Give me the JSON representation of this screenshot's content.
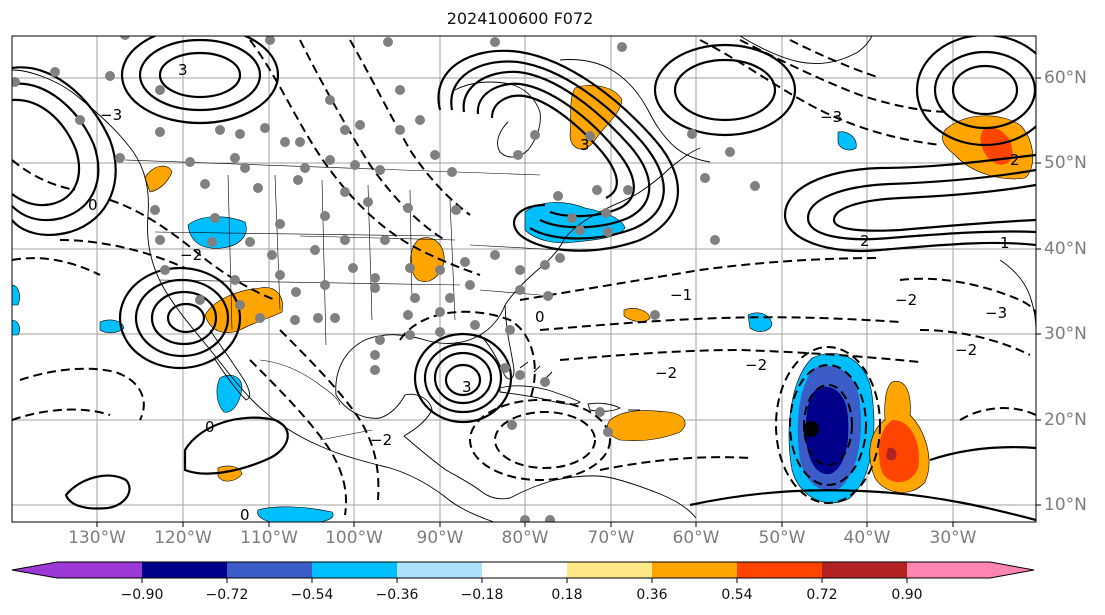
{
  "title": "2024100600 F072",
  "longitude_labels": [
    "130°W",
    "120°W",
    "110°W",
    "100°W",
    "90°W",
    "80°W",
    "70°W",
    "60°W",
    "50°W",
    "40°W",
    "30°W"
  ],
  "latitude_labels": [
    "60°N",
    "50°N",
    "40°N",
    "30°N",
    "20°N",
    "10°N"
  ],
  "colorbar": {
    "ticks": [
      "−0.90",
      "−0.72",
      "−0.54",
      "−0.36",
      "−0.18",
      "0.18",
      "0.36",
      "0.54",
      "0.72",
      "0.90"
    ],
    "colors": [
      "#9b38d6",
      "#00008b",
      "#3c5cc8",
      "#00bfff",
      "#aee1fa",
      "#ffffff",
      "#ffe887",
      "#ffa500",
      "#ff4400",
      "#b22222",
      "#ff85b0"
    ]
  },
  "contour_labels": [
    "3",
    "2",
    "1",
    "0",
    "−1",
    "−2",
    "−3"
  ],
  "shading_colors": {
    "light_orange": "#ffe887",
    "orange": "#ffa500",
    "red_orange": "#ff4400",
    "dark_red": "#b22222",
    "light_blue": "#aee1fa",
    "sky_blue": "#00bfff",
    "blue": "#3c5cc8",
    "navy": "#00008b"
  },
  "station_marker_color": "#808080"
}
